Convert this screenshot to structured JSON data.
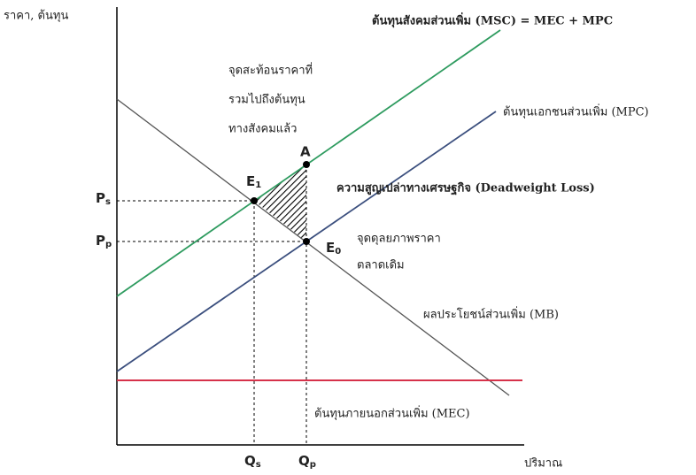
{
  "axes": {
    "y_label": "ราคา, ต้นทุน",
    "x_label": "ปริมาณ"
  },
  "curves": {
    "msc": "ต้นทุนสังคมส่วนเพิ่ม (MSC) = MEC + MPC",
    "mpc": "ต้นทุนเอกชนส่วนเพิ่ม (MPC)",
    "mb": "ผลประโยชน์ส่วนเพิ่ม (MB)",
    "mec": "ต้นทุนภายนอกส่วนเพิ่ม (MEC)"
  },
  "notes": {
    "social_price": [
      "จุดสะท้อนราคาที่",
      "รวมไปถึงต้นทุน",
      "ทางสังคมแล้ว"
    ],
    "deadweight": "ความสูญเปล่าทางเศรษฐกิจ (Deadweight Loss)",
    "market_eq": [
      "จุดดุลยภาพราคา",
      "ตลาดเดิม"
    ]
  },
  "points": {
    "a": "A",
    "e1": {
      "main": "E",
      "sub": "1"
    },
    "e0": {
      "main": "E",
      "sub": "0"
    },
    "ps": {
      "main": "P",
      "sub": "s"
    },
    "pp": {
      "main": "P",
      "sub": "p"
    },
    "qs": {
      "main": "Q",
      "sub": "s"
    },
    "qp": {
      "main": "Q",
      "sub": "p"
    }
  }
}
